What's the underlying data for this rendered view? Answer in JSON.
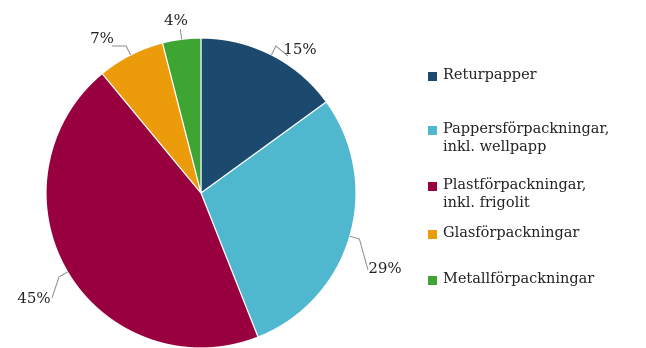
{
  "chart_data": {
    "type": "pie",
    "title": "",
    "start_angle_deg": 0,
    "direction": "clockwise",
    "legend_position": "right",
    "slices": [
      {
        "label": "Returpapper",
        "value": 15,
        "value_label": "15%",
        "color": "#1b4a6e"
      },
      {
        "label": "Pappersförpackningar,\ninkl. wellpapp",
        "value": 29,
        "value_label": "29%",
        "color": "#4fb8cf"
      },
      {
        "label": "Plastförpackningar,\ninkl. frigolit",
        "value": 45,
        "value_label": "45%",
        "color": "#98003f"
      },
      {
        "label": "Glasförpackningar",
        "value": 7,
        "value_label": "7%",
        "color": "#ec9b0b"
      },
      {
        "label": "Metallförpackningar",
        "value": 4,
        "value_label": "4%",
        "color": "#3ea534"
      }
    ]
  }
}
